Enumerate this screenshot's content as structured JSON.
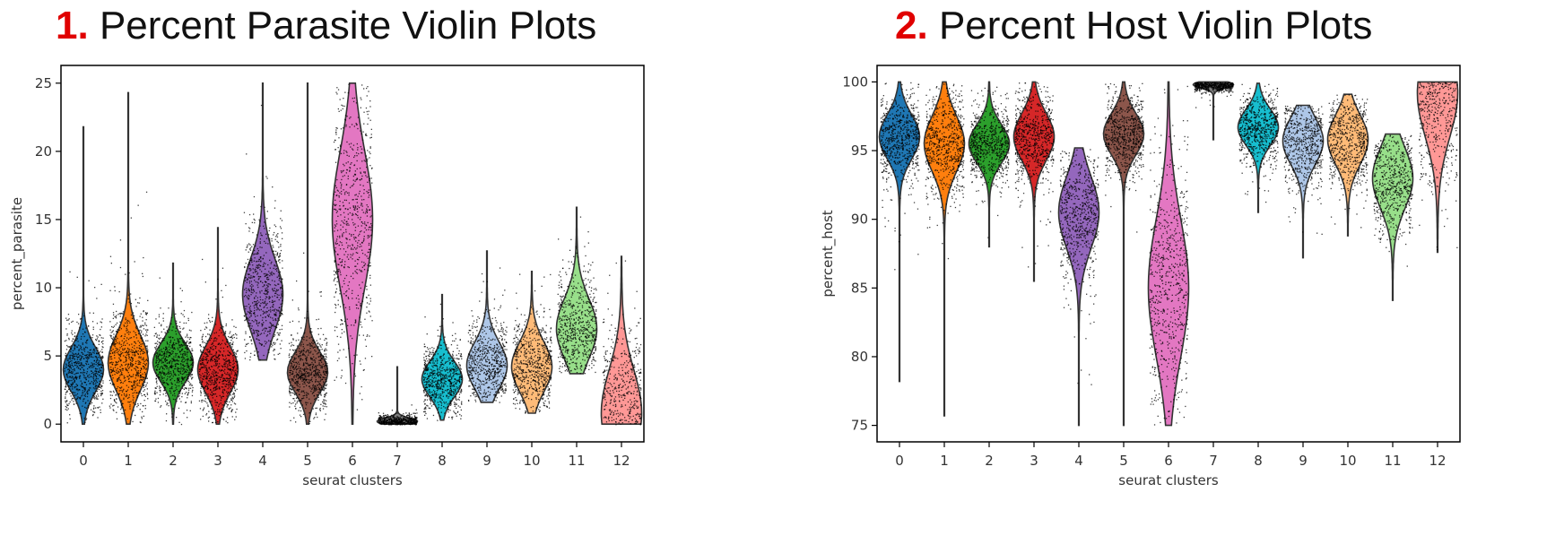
{
  "panels": [
    {
      "number": "1.",
      "title": "Percent Parasite Violin Plots"
    },
    {
      "number": "2.",
      "title": "Percent Host Violin Plots"
    }
  ],
  "chart_data": [
    {
      "type": "violin",
      "ylabel": "percent_parasite",
      "xlabel": "seurat clusters",
      "ylim": [
        -1.3,
        26.3
      ],
      "yticks": [
        0,
        5,
        10,
        15,
        20,
        25
      ],
      "categories": [
        "0",
        "1",
        "2",
        "3",
        "4",
        "5",
        "6",
        "7",
        "8",
        "9",
        "10",
        "11",
        "12"
      ],
      "colors": [
        "#1f77b4",
        "#ff7f0e",
        "#2ca02c",
        "#d62728",
        "#9467bd",
        "#8c564b",
        "#e377c2",
        "#7f7f7f",
        "#17becf",
        "#aec7e8",
        "#ffbb78",
        "#98df8a",
        "#ff9896"
      ],
      "series": [
        {
          "min": 0,
          "max": 21.8,
          "median": 4.0,
          "spread": 1.6
        },
        {
          "min": 0,
          "max": 24.3,
          "median": 4.5,
          "spread": 2.0
        },
        {
          "min": 0,
          "max": 11.8,
          "median": 4.5,
          "spread": 1.4
        },
        {
          "min": 0,
          "max": 14.4,
          "median": 4.0,
          "spread": 1.7
        },
        {
          "min": 4.7,
          "max": 25.0,
          "median": 9.5,
          "spread": 2.6
        },
        {
          "min": 0,
          "max": 25.0,
          "median": 3.8,
          "spread": 1.5
        },
        {
          "min": 0,
          "max": 25.0,
          "median": 15.0,
          "spread": 5.0
        },
        {
          "min": 0,
          "max": 4.2,
          "median": 0.2,
          "spread": 0.25
        },
        {
          "min": 0.3,
          "max": 9.5,
          "median": 3.3,
          "spread": 1.3
        },
        {
          "min": 1.6,
          "max": 12.7,
          "median": 4.3,
          "spread": 1.7
        },
        {
          "min": 0.8,
          "max": 11.2,
          "median": 4.2,
          "spread": 1.8
        },
        {
          "min": 3.7,
          "max": 15.9,
          "median": 7.0,
          "spread": 2.2
        },
        {
          "min": 0,
          "max": 12.3,
          "median": 0.8,
          "spread": 3.2
        }
      ]
    },
    {
      "type": "violin",
      "ylabel": "percent_host",
      "xlabel": "seurat clusters",
      "ylim": [
        73.8,
        101.2
      ],
      "yticks": [
        75,
        80,
        85,
        90,
        95,
        100
      ],
      "categories": [
        "0",
        "1",
        "2",
        "3",
        "4",
        "5",
        "6",
        "7",
        "8",
        "9",
        "10",
        "11",
        "12"
      ],
      "colors": [
        "#1f77b4",
        "#ff7f0e",
        "#2ca02c",
        "#d62728",
        "#9467bd",
        "#8c564b",
        "#e377c2",
        "#7f7f7f",
        "#17becf",
        "#aec7e8",
        "#ffbb78",
        "#98df8a",
        "#ff9896"
      ],
      "series": [
        {
          "min": 78.2,
          "max": 100,
          "median": 96.0,
          "spread": 1.6
        },
        {
          "min": 75.7,
          "max": 100,
          "median": 95.5,
          "spread": 2.0
        },
        {
          "min": 88.0,
          "max": 100,
          "median": 95.5,
          "spread": 1.4
        },
        {
          "min": 85.5,
          "max": 100,
          "median": 96.0,
          "spread": 1.7
        },
        {
          "min": 75.0,
          "max": 95.2,
          "median": 90.5,
          "spread": 2.6
        },
        {
          "min": 75.0,
          "max": 100,
          "median": 96.2,
          "spread": 1.5
        },
        {
          "min": 75.0,
          "max": 100,
          "median": 85.0,
          "spread": 5.0
        },
        {
          "min": 95.8,
          "max": 100,
          "median": 99.8,
          "spread": 0.25
        },
        {
          "min": 90.5,
          "max": 99.9,
          "median": 96.7,
          "spread": 1.3
        },
        {
          "min": 87.2,
          "max": 98.3,
          "median": 95.7,
          "spread": 1.7
        },
        {
          "min": 88.8,
          "max": 99.1,
          "median": 95.8,
          "spread": 1.8
        },
        {
          "min": 84.1,
          "max": 96.2,
          "median": 93.0,
          "spread": 2.2
        },
        {
          "min": 87.6,
          "max": 100,
          "median": 99.2,
          "spread": 3.2
        }
      ]
    }
  ]
}
